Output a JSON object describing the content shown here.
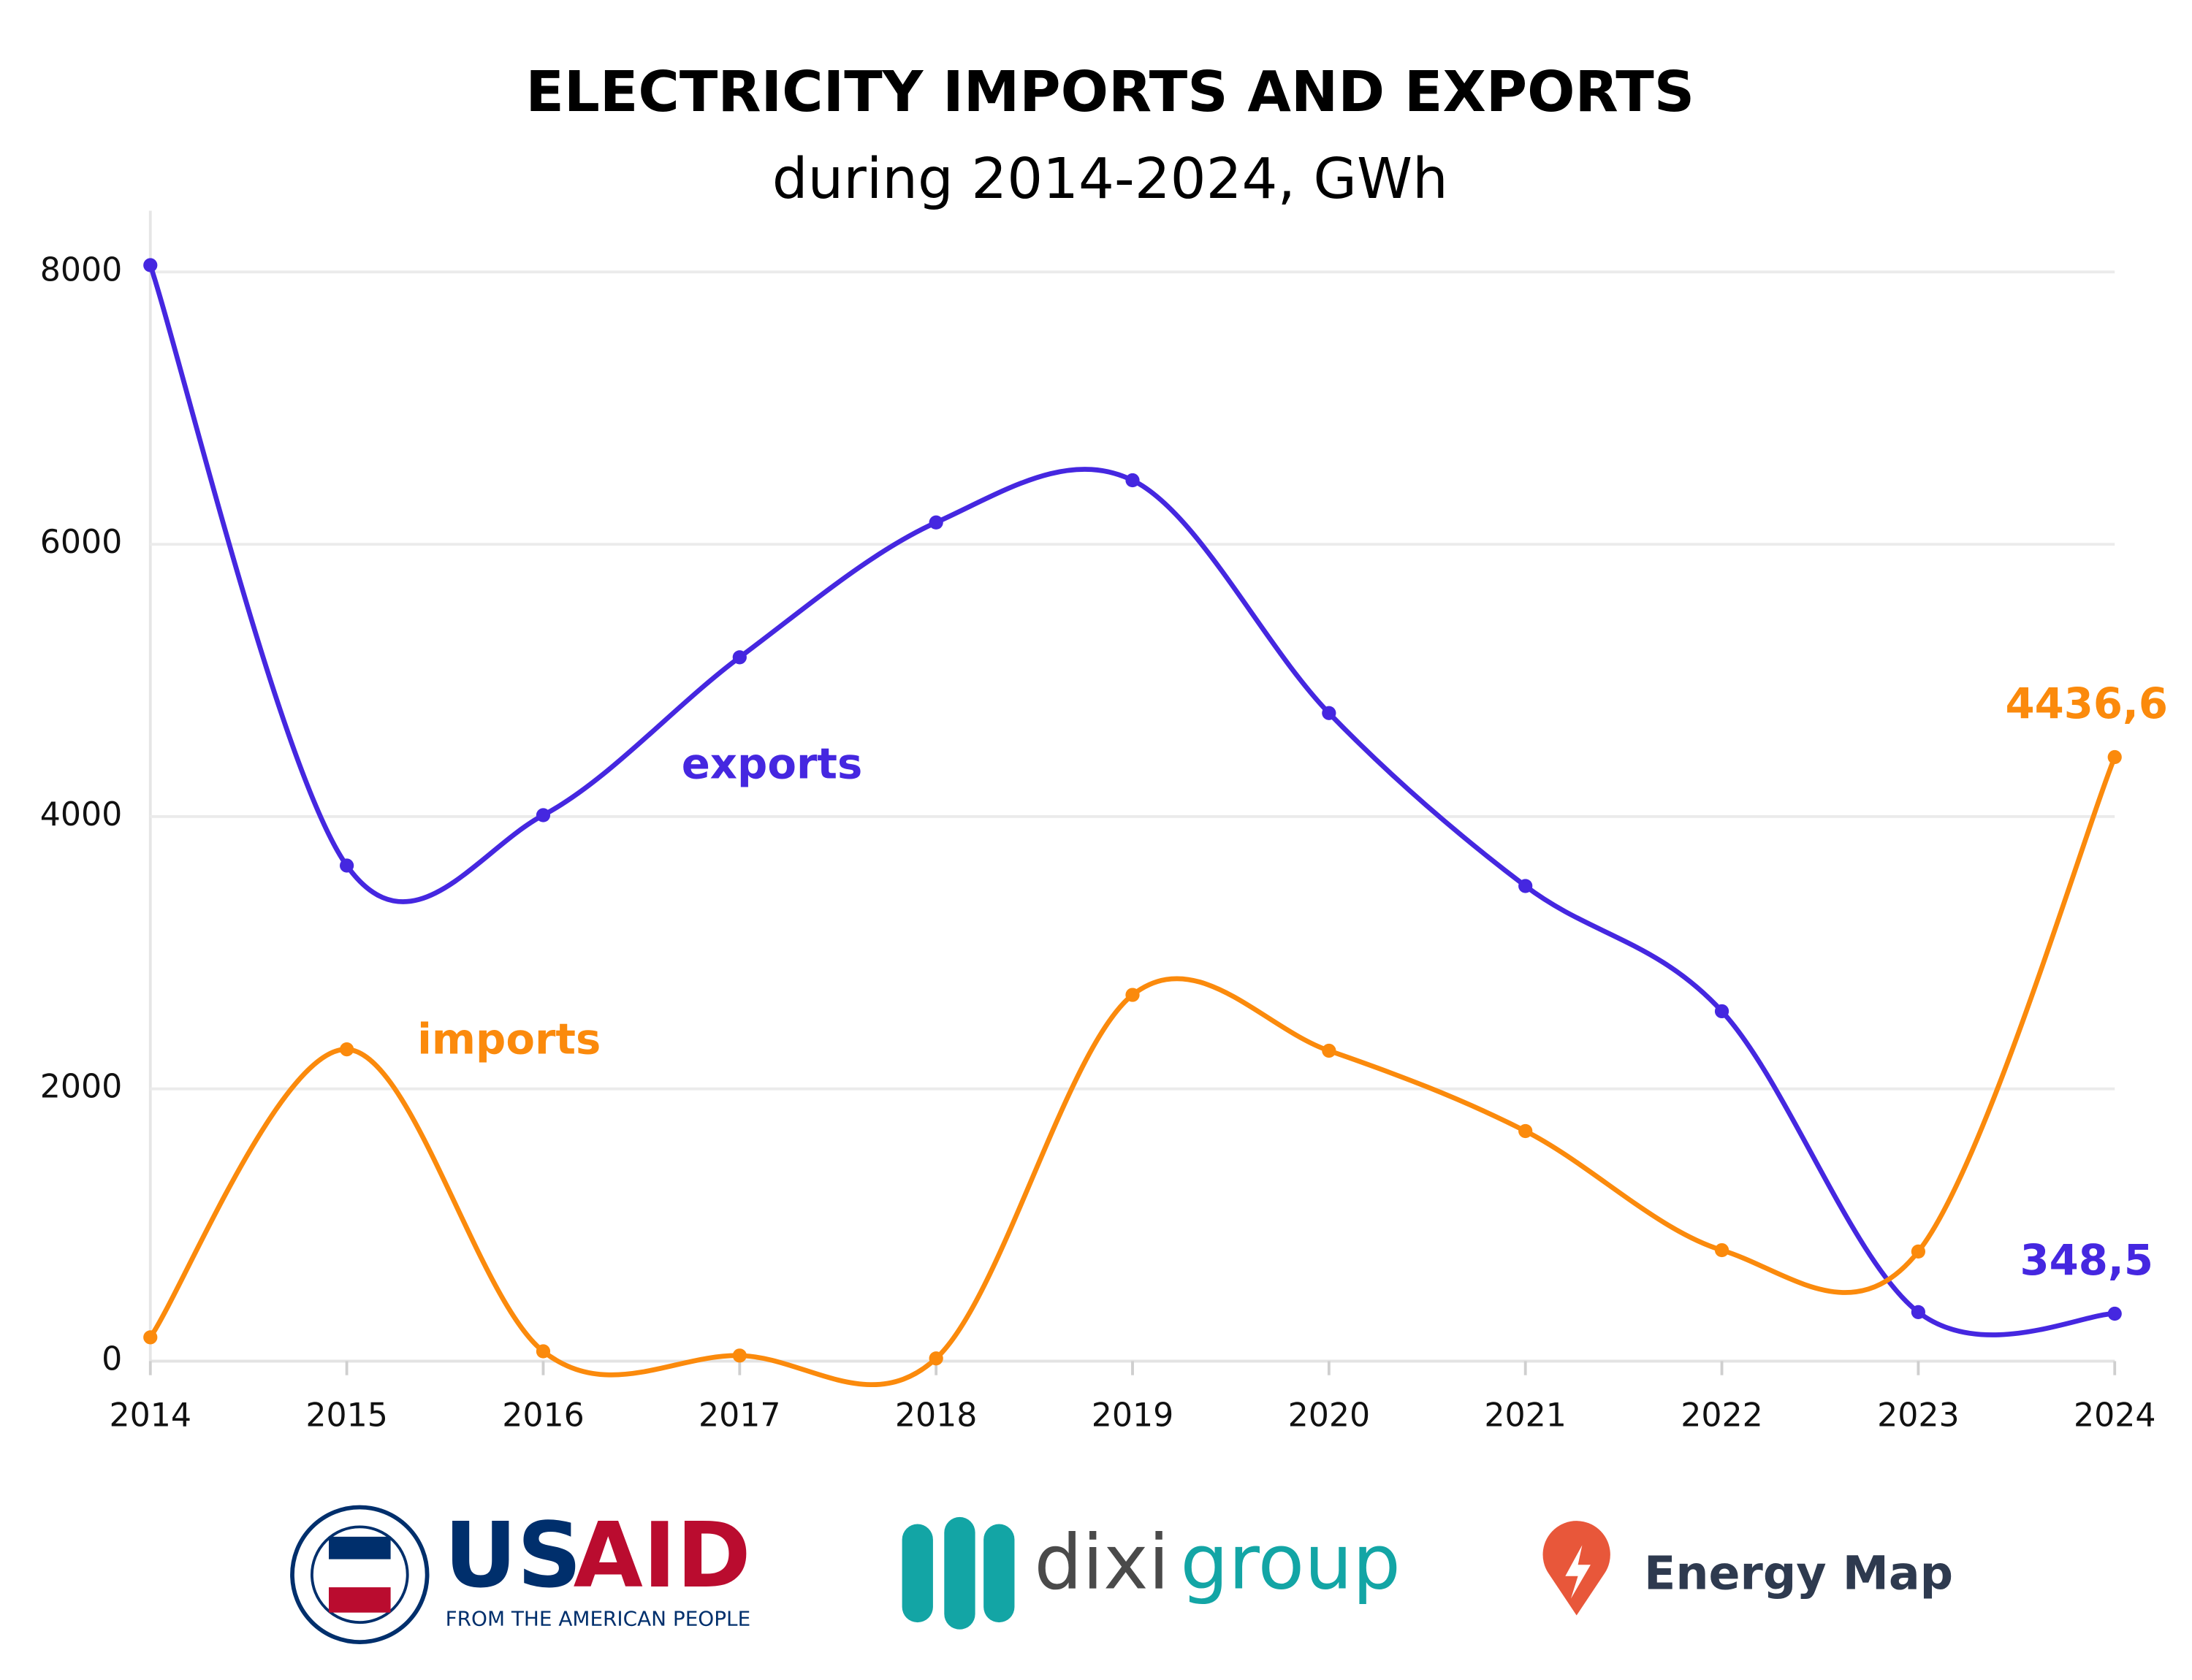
{
  "chart_data": {
    "type": "line",
    "title": "ELECTRICITY IMPORTS AND EXPORTS",
    "subtitle": "during 2014-2024, GWh",
    "x": [
      2014,
      2015,
      2016,
      2017,
      2018,
      2019,
      2020,
      2021,
      2022,
      2023,
      2024
    ],
    "xlim": [
      2014,
      2024
    ],
    "xticks": [
      2014,
      2015,
      2016,
      2017,
      2018,
      2019,
      2020,
      2021,
      2022,
      2023,
      2024
    ],
    "ylim": [
      0,
      8450
    ],
    "yticks": [
      0,
      2000,
      4000,
      6000,
      8000
    ],
    "grid": true,
    "series": [
      {
        "name": "exports",
        "color": "#4527e0",
        "values": [
          8050,
          3640,
          4010,
          5170,
          6160,
          6470,
          4760,
          3490,
          2570,
          360,
          348.5
        ],
        "value_labels": [
          null,
          null,
          null,
          null,
          null,
          null,
          null,
          null,
          null,
          null,
          "348,5"
        ]
      },
      {
        "name": "imports",
        "color": "#fb8a0c",
        "values": [
          175,
          2290,
          72,
          41,
          20,
          2690,
          2280,
          1690,
          815,
          805,
          4436.6
        ],
        "value_labels": [
          null,
          null,
          null,
          null,
          null,
          null,
          null,
          null,
          null,
          null,
          "4436,6"
        ]
      }
    ]
  },
  "logos": {
    "usaid": [
      "US",
      "AID"
    ],
    "usaid_tagline": "FROM THE AMERICAN PEOPLE",
    "dixigroup": [
      "dixi",
      "group"
    ],
    "energy_map": "Energy Map"
  }
}
